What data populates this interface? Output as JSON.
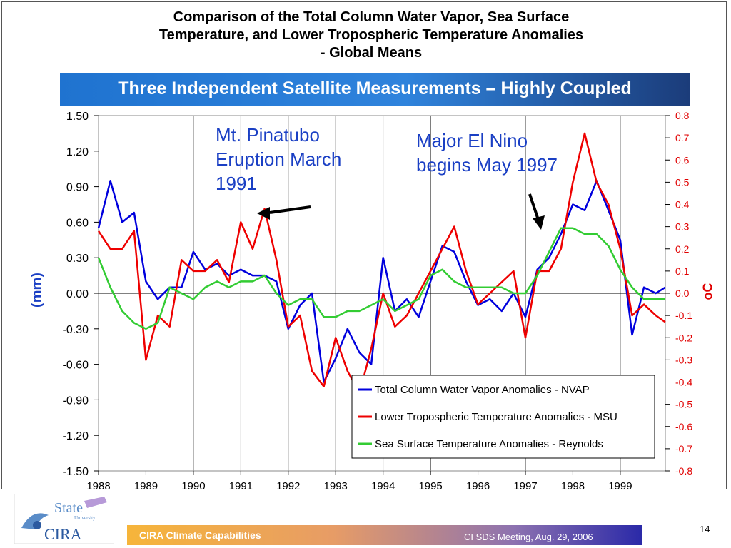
{
  "slide": {
    "title_lines": [
      "Comparison of the Total Column Water Vapor,  Sea Surface",
      "Temperature,  and Lower Tropospheric Temperature Anomalies",
      "- Global Means"
    ],
    "subtitle": "Three Independent Satellite Measurements – Highly Coupled",
    "annotations": {
      "pinatubo": "Mt. Pinatubo Eruption March 1991",
      "elnino": "Major El Nino begins May 1997"
    },
    "footer": {
      "left": "CIRA Climate Capabilities",
      "right": "CI SDS Meeting, Aug. 29, 2006",
      "page": "14"
    },
    "logo": {
      "top_text": "State",
      "small_text": "University",
      "bottom_text": "CIRA"
    },
    "colors": {
      "nvap": "#0000dd",
      "msu": "#ee0000",
      "reynolds": "#33cc33",
      "banner": "#2a7dd6"
    }
  },
  "chart_data": {
    "type": "line",
    "title": "",
    "xlabel": "",
    "ylabel": "(mm)",
    "y2label": "oC",
    "xlim": [
      1988,
      1999.95
    ],
    "ylim": [
      -1.5,
      1.5
    ],
    "y2lim": [
      -0.8,
      0.8
    ],
    "x_ticks": [
      "1988",
      "1989",
      "1990",
      "1991",
      "1992",
      "1993",
      "1994",
      "1995",
      "1996",
      "1997",
      "1998",
      "1999"
    ],
    "y_ticks": [
      "1.50",
      "1.20",
      "0.90",
      "0.60",
      "0.30",
      "0.00",
      "-0.30",
      "-0.60",
      "-0.90",
      "-1.20",
      "-1.50"
    ],
    "y2_ticks": [
      "0.8",
      "0.7",
      "0.6",
      "0.5",
      "0.4",
      "0.3",
      "0.2",
      "0.1",
      "0.0",
      "-0.1",
      "-0.2",
      "-0.3",
      "-0.4",
      "-0.5",
      "-0.6",
      "-0.7",
      "-0.8"
    ],
    "grid": "vertical",
    "legend_position": "lower-right",
    "series": [
      {
        "name": "Total Column Water Vapor Anomalies - NVAP",
        "axis": "left",
        "x": [
          1988.0,
          1988.25,
          1988.5,
          1988.75,
          1989.0,
          1989.25,
          1989.5,
          1989.75,
          1990.0,
          1990.25,
          1990.5,
          1990.75,
          1991.0,
          1991.25,
          1991.5,
          1991.75,
          1992.0,
          1992.25,
          1992.5,
          1992.75,
          1993.0,
          1993.25,
          1993.5,
          1993.75,
          1994.0,
          1994.25,
          1994.5,
          1994.75,
          1995.0,
          1995.25,
          1995.5,
          1995.75,
          1996.0,
          1996.25,
          1996.5,
          1996.75,
          1997.0,
          1997.25,
          1997.5,
          1997.75,
          1998.0,
          1998.25,
          1998.5,
          1998.75,
          1999.0,
          1999.25,
          1999.5,
          1999.75,
          1999.95
        ],
        "y": [
          0.55,
          0.95,
          0.6,
          0.68,
          0.1,
          -0.05,
          0.05,
          0.05,
          0.35,
          0.2,
          0.25,
          0.15,
          0.2,
          0.15,
          0.15,
          0.1,
          -0.3,
          -0.1,
          0.0,
          -0.75,
          -0.55,
          -0.3,
          -0.5,
          -0.6,
          0.3,
          -0.15,
          -0.05,
          -0.2,
          0.1,
          0.4,
          0.35,
          0.1,
          -0.1,
          -0.05,
          -0.15,
          0.0,
          -0.2,
          0.2,
          0.3,
          0.5,
          0.75,
          0.7,
          0.95,
          0.7,
          0.45,
          -0.35,
          0.05,
          0.0,
          0.05
        ]
      },
      {
        "name": "Lower Tropospheric Temperature Anomalies - MSU",
        "axis": "right",
        "x": [
          1988.0,
          1988.25,
          1988.5,
          1988.75,
          1989.0,
          1989.25,
          1989.5,
          1989.75,
          1990.0,
          1990.25,
          1990.5,
          1990.75,
          1991.0,
          1991.25,
          1991.5,
          1991.75,
          1992.0,
          1992.25,
          1992.5,
          1992.75,
          1993.0,
          1993.25,
          1993.5,
          1993.75,
          1994.0,
          1994.25,
          1994.5,
          1994.75,
          1995.0,
          1995.25,
          1995.5,
          1995.75,
          1996.0,
          1996.25,
          1996.5,
          1996.75,
          1997.0,
          1997.25,
          1997.5,
          1997.75,
          1998.0,
          1998.25,
          1998.5,
          1998.75,
          1999.0,
          1999.25,
          1999.5,
          1999.75,
          1999.95
        ],
        "y": [
          0.28,
          0.2,
          0.2,
          0.28,
          -0.3,
          -0.1,
          -0.15,
          0.15,
          0.1,
          0.1,
          0.15,
          0.05,
          0.32,
          0.2,
          0.38,
          0.15,
          -0.15,
          -0.1,
          -0.35,
          -0.42,
          -0.2,
          -0.35,
          -0.45,
          -0.25,
          0.0,
          -0.15,
          -0.1,
          0.0,
          0.1,
          0.2,
          0.3,
          0.1,
          -0.05,
          0.0,
          0.05,
          0.1,
          -0.2,
          0.1,
          0.1,
          0.2,
          0.5,
          0.72,
          0.5,
          0.4,
          0.2,
          -0.1,
          -0.05,
          -0.1,
          -0.13
        ]
      },
      {
        "name": "Sea Surface Temperature Anomalies - Reynolds",
        "axis": "left",
        "x": [
          1988.0,
          1988.25,
          1988.5,
          1988.75,
          1989.0,
          1989.25,
          1989.5,
          1989.75,
          1990.0,
          1990.25,
          1990.5,
          1990.75,
          1991.0,
          1991.25,
          1991.5,
          1991.75,
          1992.0,
          1992.25,
          1992.5,
          1992.75,
          1993.0,
          1993.25,
          1993.5,
          1993.75,
          1994.0,
          1994.25,
          1994.5,
          1994.75,
          1995.0,
          1995.25,
          1995.5,
          1995.75,
          1996.0,
          1996.25,
          1996.5,
          1996.75,
          1997.0,
          1997.25,
          1997.5,
          1997.75,
          1998.0,
          1998.25,
          1998.5,
          1998.75,
          1999.0,
          1999.25,
          1999.5,
          1999.75,
          1999.95
        ],
        "y": [
          0.3,
          0.05,
          -0.15,
          -0.25,
          -0.3,
          -0.25,
          0.05,
          0.0,
          -0.05,
          0.05,
          0.1,
          0.05,
          0.1,
          0.1,
          0.15,
          0.0,
          -0.1,
          -0.05,
          -0.05,
          -0.2,
          -0.2,
          -0.15,
          -0.15,
          -0.1,
          -0.05,
          -0.15,
          -0.1,
          -0.05,
          0.15,
          0.2,
          0.1,
          0.05,
          0.05,
          0.05,
          0.05,
          0.0,
          0.0,
          0.15,
          0.35,
          0.55,
          0.55,
          0.5,
          0.5,
          0.4,
          0.2,
          0.05,
          -0.05,
          -0.05,
          -0.05
        ]
      }
    ]
  }
}
